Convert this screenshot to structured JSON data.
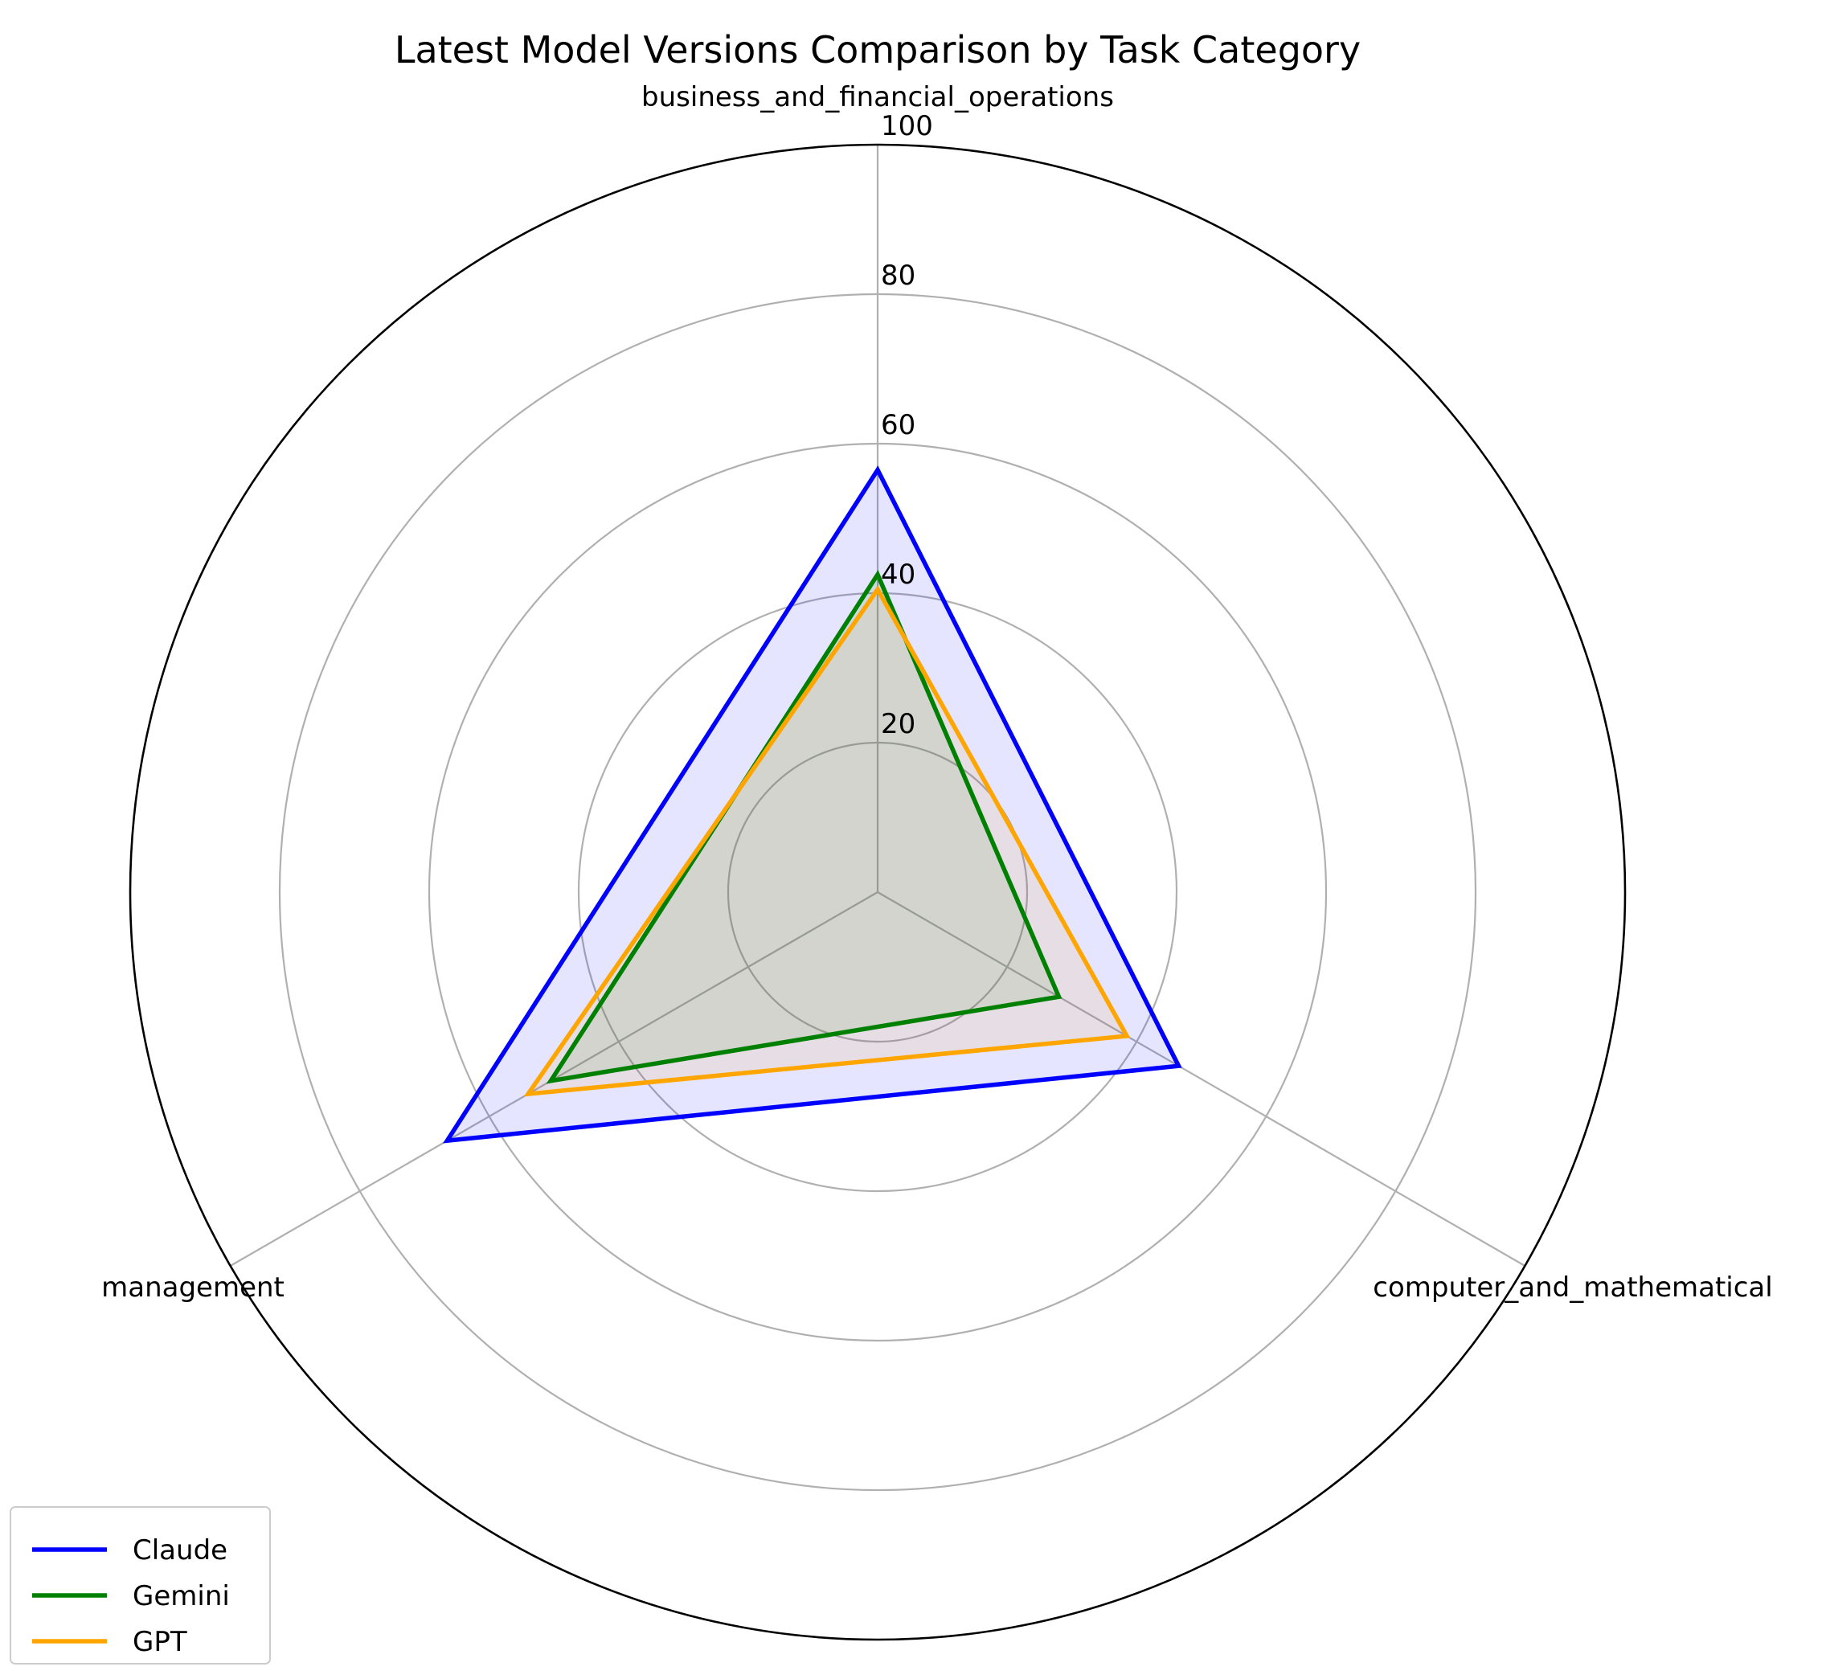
{
  "chart_data": {
    "type": "radar",
    "title": "Latest Model Versions Comparison by Task Category",
    "categories": [
      "business_and_financial_operations",
      "computer_and_mathematical",
      "management"
    ],
    "rlim": [
      0,
      100
    ],
    "rticks": [
      20,
      40,
      60,
      80,
      100
    ],
    "rtick_labels": [
      "20",
      "40",
      "60",
      "80",
      "100"
    ],
    "grid": true,
    "legend_position": "lower-left",
    "series": [
      {
        "name": "Claude",
        "values": [
          56.5,
          46.5,
          66.5
        ],
        "color": "#0000ff"
      },
      {
        "name": "Gemini",
        "values": [
          42.5,
          28.0,
          50.5
        ],
        "color": "#008000"
      },
      {
        "name": "GPT",
        "values": [
          40.5,
          38.5,
          54.0
        ],
        "color": "#ffa500"
      }
    ]
  }
}
